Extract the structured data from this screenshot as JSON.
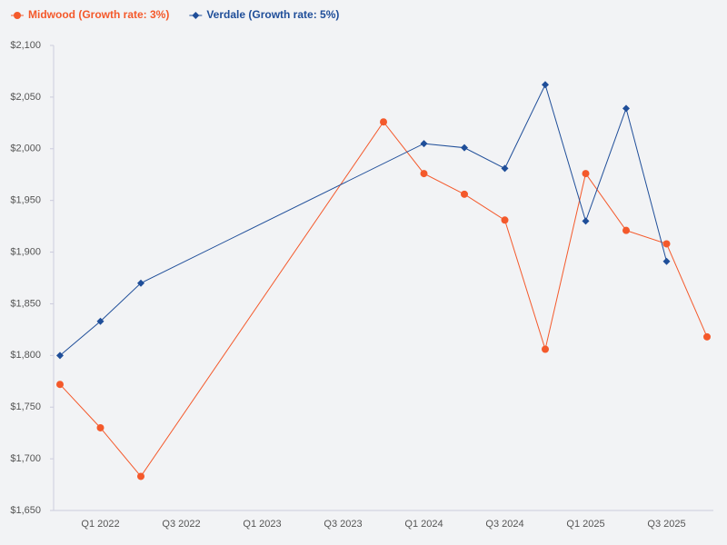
{
  "chart_data": {
    "type": "line",
    "categories": [
      null,
      "Q1 2022",
      null,
      "Q3 2022",
      null,
      "Q1 2023",
      null,
      "Q3 2023",
      null,
      "Q1 2024",
      null,
      "Q3 2024",
      null,
      "Q1 2025",
      null,
      "Q3 2025",
      null
    ],
    "connect_gaps": true,
    "series": [
      {
        "name": "Midwood (Growth rate: 3%)",
        "color": "#f4592b",
        "marker": "circle",
        "values": [
          1772,
          1730,
          1683,
          null,
          null,
          null,
          null,
          null,
          2026,
          1976,
          1956,
          1931,
          1806,
          1976,
          1921,
          1908,
          1818
        ]
      },
      {
        "name": "Verdale (Growth rate: 5%)",
        "color": "#1f4e99",
        "marker": "diamond",
        "values": [
          1800,
          1833,
          1870,
          null,
          null,
          null,
          null,
          null,
          null,
          2005,
          2001,
          1981,
          2062,
          1930,
          2039,
          1891,
          null
        ]
      }
    ],
    "ylim": [
      1650,
      2100
    ],
    "yticks": [
      {
        "value": 1650,
        "label": "$1,650"
      },
      {
        "value": 1700,
        "label": "$1,700"
      },
      {
        "value": 1750,
        "label": "$1,750"
      },
      {
        "value": 1800,
        "label": "$1,800"
      },
      {
        "value": 1850,
        "label": "$1,850"
      },
      {
        "value": 1900,
        "label": "$1,900"
      },
      {
        "value": 1950,
        "label": "$1,950"
      },
      {
        "value": 2000,
        "label": "$2,000"
      },
      {
        "value": 2050,
        "label": "$2,050"
      },
      {
        "value": 2100,
        "label": "$2,100"
      }
    ],
    "grid": false,
    "legend": "top-left"
  }
}
